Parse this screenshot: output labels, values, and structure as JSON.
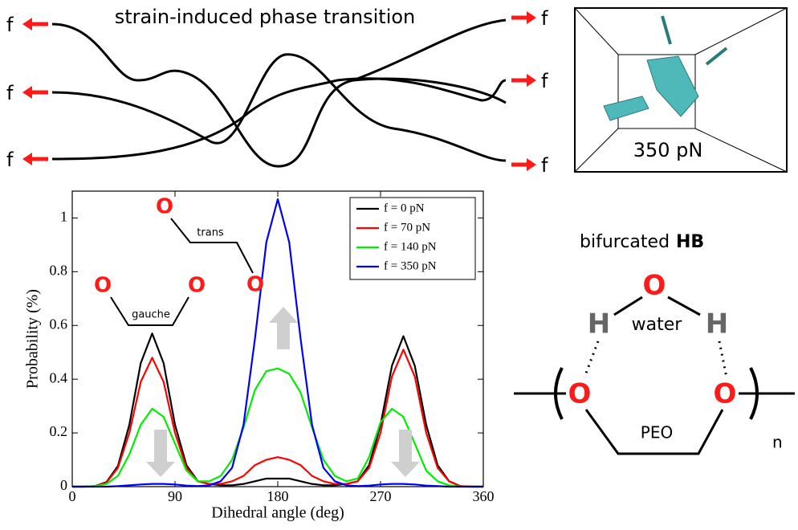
{
  "header": {
    "title": "strain-induced phase transition"
  },
  "forces": {
    "left": [
      "f",
      "f",
      "f"
    ],
    "right": [
      "f",
      "f",
      "f"
    ]
  },
  "snapshot": {
    "label": "350 pN"
  },
  "plot_annotations": {
    "gauche": "gauche",
    "trans": "trans",
    "oxygens": [
      "O",
      "O",
      "O",
      "O"
    ]
  },
  "hb_diagram": {
    "title": "bifurcated",
    "title_bold": "HB",
    "oxygens": [
      "O",
      "O",
      "O"
    ],
    "hydrogens": [
      "H",
      "H"
    ],
    "water": "water",
    "peo": "PEO",
    "subscript": "n"
  },
  "chart_data": {
    "type": "line",
    "x_label": "Dihedral angle (deg)",
    "y_label": "Probability (%)",
    "x": [
      0,
      10,
      20,
      30,
      40,
      50,
      60,
      70,
      80,
      90,
      100,
      110,
      120,
      130,
      140,
      150,
      160,
      170,
      180,
      190,
      200,
      210,
      220,
      230,
      240,
      250,
      260,
      270,
      280,
      290,
      300,
      310,
      320,
      330,
      340,
      350,
      360
    ],
    "series": [
      {
        "name": "f = 0 pN",
        "color": "#000000",
        "values": [
          0,
          0,
          0.002,
          0.017,
          0.077,
          0.23,
          0.46,
          0.57,
          0.46,
          0.23,
          0.08,
          0.02,
          0.01,
          0.005,
          0.005,
          0.01,
          0.02,
          0.03,
          0.03,
          0.03,
          0.02,
          0.01,
          0.005,
          0.005,
          0.01,
          0.02,
          0.08,
          0.23,
          0.45,
          0.56,
          0.45,
          0.23,
          0.08,
          0.02,
          0.002,
          0,
          0
        ]
      },
      {
        "name": "f = 70 pN",
        "color": "#ff0000",
        "values": [
          0,
          0,
          0.002,
          0.015,
          0.07,
          0.2,
          0.39,
          0.48,
          0.39,
          0.2,
          0.07,
          0.02,
          0.01,
          0.01,
          0.02,
          0.04,
          0.08,
          0.1,
          0.11,
          0.1,
          0.08,
          0.04,
          0.02,
          0.01,
          0.01,
          0.02,
          0.07,
          0.2,
          0.41,
          0.51,
          0.41,
          0.2,
          0.07,
          0.02,
          0.002,
          0,
          0
        ]
      },
      {
        "name": "f = 140 pN",
        "color": "#00ee00",
        "values": [
          0,
          0,
          0.002,
          0.01,
          0.04,
          0.12,
          0.23,
          0.29,
          0.26,
          0.16,
          0.06,
          0.02,
          0.02,
          0.04,
          0.1,
          0.22,
          0.36,
          0.43,
          0.44,
          0.42,
          0.35,
          0.22,
          0.1,
          0.04,
          0.02,
          0.03,
          0.11,
          0.24,
          0.29,
          0.26,
          0.16,
          0.06,
          0.02,
          0.005,
          0,
          0,
          0
        ]
      },
      {
        "name": "f = 350 pN",
        "color": "#0000ff",
        "values": [
          0,
          0,
          0,
          0,
          0.002,
          0.005,
          0.008,
          0.01,
          0.01,
          0.008,
          0.004,
          0.002,
          0.005,
          0.02,
          0.07,
          0.23,
          0.55,
          0.91,
          1.07,
          0.91,
          0.55,
          0.23,
          0.07,
          0.02,
          0.005,
          0.002,
          0.004,
          0.008,
          0.01,
          0.01,
          0.008,
          0.004,
          0.002,
          0,
          0,
          0,
          0
        ]
      }
    ],
    "xlim": [
      0,
      360
    ],
    "xticks": [
      0,
      90,
      180,
      270,
      360
    ],
    "ylim": [
      0,
      1.1
    ],
    "yticks": [
      0,
      0.2,
      0.4,
      0.6,
      0.8,
      1
    ],
    "legend": "upper right"
  }
}
